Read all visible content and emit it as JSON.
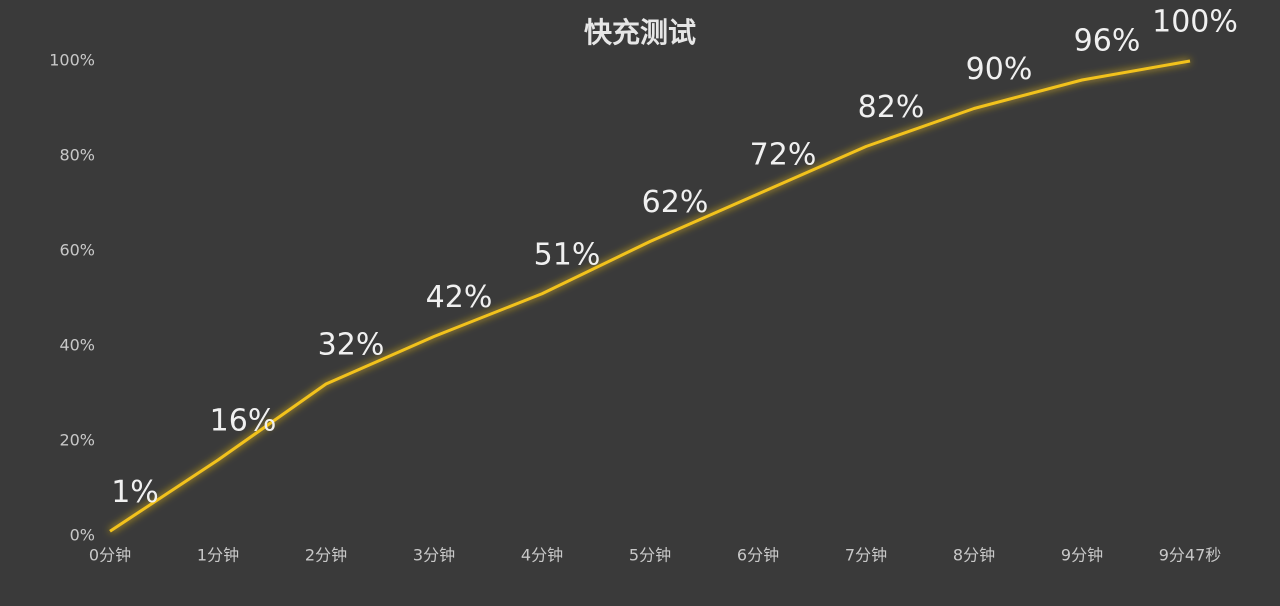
{
  "chart_data": {
    "type": "line",
    "title": "快充测试",
    "categories": [
      "0分钟",
      "1分钟",
      "2分钟",
      "3分钟",
      "4分钟",
      "5分钟",
      "6分钟",
      "7分钟",
      "8分钟",
      "9分钟",
      "9分47秒"
    ],
    "values": [
      1,
      16,
      32,
      42,
      51,
      62,
      72,
      82,
      90,
      96,
      100
    ],
    "value_labels": [
      "1%",
      "16%",
      "32%",
      "42%",
      "51%",
      "62%",
      "72%",
      "82%",
      "90%",
      "96%",
      "100%"
    ],
    "color": "#f2c21b",
    "ylim": [
      0,
      100
    ],
    "yticks": [
      {
        "value": 0,
        "label": "0%"
      },
      {
        "value": 20,
        "label": "20%"
      },
      {
        "value": 40,
        "label": "40%"
      },
      {
        "value": 60,
        "label": "60%"
      },
      {
        "value": 80,
        "label": "80%"
      },
      {
        "value": 100,
        "label": "100%"
      }
    ],
    "grid": false
  }
}
